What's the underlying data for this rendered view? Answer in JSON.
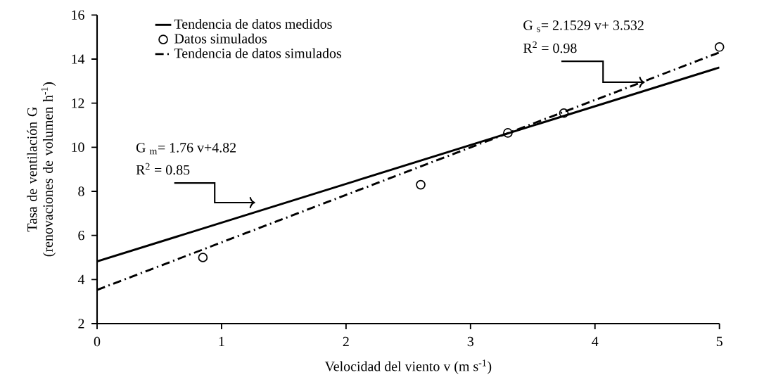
{
  "chart_data": {
    "type": "line",
    "xlabel": "Velocidad del viento v (m s$^{-1}$)",
    "ylabel": "Tasa de ventilación G (renovaciones de volumen h$^{-1}$)",
    "xlim": [
      0,
      5
    ],
    "ylim": [
      2,
      16
    ],
    "xticks": [
      0,
      1,
      2,
      3,
      4,
      5
    ],
    "yticks": [
      2,
      4,
      6,
      8,
      10,
      12,
      14,
      16
    ],
    "legend": "top left",
    "grid": false,
    "series": [
      {
        "name": "Tendencia de datos medidos",
        "line_style": "solid",
        "marker": "none",
        "color": "#000000",
        "x": [
          0,
          5
        ],
        "values": [
          4.82,
          13.62
        ]
      },
      {
        "name": "Datos simulados",
        "type": "scatter",
        "marker": "circle",
        "color": "#000000",
        "x": [
          0.85,
          2.6,
          3.3,
          3.75,
          5
        ],
        "values": [
          5.0,
          8.3,
          10.65,
          11.55,
          14.55
        ]
      },
      {
        "name": "Tendencia de datos simulados",
        "line_style": "dashed",
        "marker": "none",
        "color": "#000000",
        "x": [
          0,
          5
        ],
        "values": [
          3.53,
          14.3
        ]
      }
    ],
    "annotations": [
      "G $_{m}$= 1.76 v+4.82",
      "R$^{2}$ = 0.85",
      "G $_{s}$= 2.1529 v+ 3.532",
      {
        "text": "R$^{2}$ = 0.98",
        "x": 4.4,
        "y": 12.95
      }
    ]
  }
}
